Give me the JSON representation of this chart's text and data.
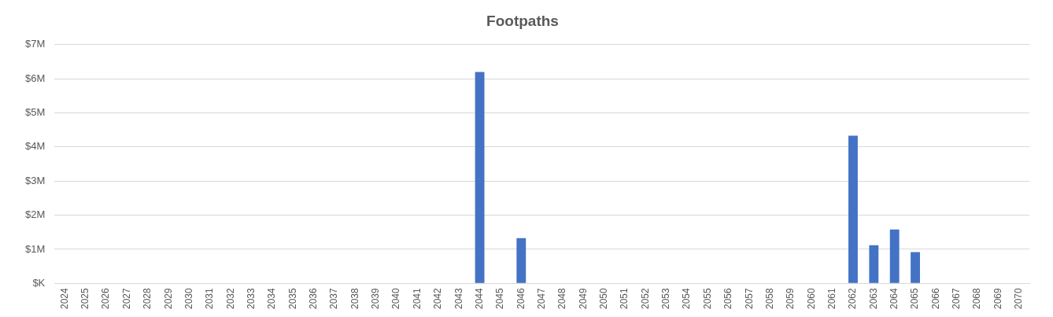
{
  "chart_data": {
    "type": "bar",
    "title": "Footpaths",
    "categories": [
      "2024",
      "2025",
      "2026",
      "2027",
      "2028",
      "2029",
      "2030",
      "2031",
      "2032",
      "2033",
      "2034",
      "2035",
      "2036",
      "2037",
      "2038",
      "2039",
      "2040",
      "2041",
      "2042",
      "2043",
      "2044",
      "2045",
      "2046",
      "2047",
      "2048",
      "2049",
      "2050",
      "2051",
      "2052",
      "2053",
      "2054",
      "2055",
      "2056",
      "2057",
      "2058",
      "2059",
      "2060",
      "2061",
      "2062",
      "2063",
      "2064",
      "2065",
      "2066",
      "2067",
      "2068",
      "2069",
      "2070"
    ],
    "values": [
      0,
      0,
      0,
      0,
      0,
      0,
      0,
      0,
      0,
      0,
      0,
      0,
      0,
      0,
      0,
      0,
      0,
      0,
      0,
      0,
      6.2,
      0,
      1.33,
      0,
      0,
      0,
      0,
      0,
      0,
      0,
      0,
      0,
      0,
      0,
      0,
      0,
      0,
      0,
      4.33,
      1.12,
      1.58,
      0.92,
      0,
      0,
      0,
      0,
      0
    ],
    "color": "#4472c4",
    "ylim": [
      0,
      7
    ],
    "yticks": [
      {
        "value": 0,
        "label": "$K"
      },
      {
        "value": 1,
        "label": "$1M"
      },
      {
        "value": 2,
        "label": "$2M"
      },
      {
        "value": 3,
        "label": "$3M"
      },
      {
        "value": 4,
        "label": "$4M"
      },
      {
        "value": 5,
        "label": "$5M"
      },
      {
        "value": 6,
        "label": "$6M"
      },
      {
        "value": 7,
        "label": "$7M"
      }
    ],
    "grid": "y"
  }
}
